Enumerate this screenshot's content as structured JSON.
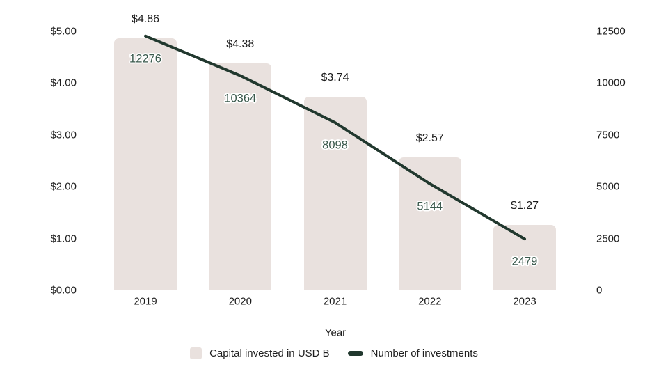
{
  "colors": {
    "bar_fill": "#e9e1de",
    "line": "#21382e",
    "point_label": "#3a594c",
    "text": "#1f1f1f"
  },
  "chart_data": {
    "type": "combo",
    "title": "",
    "xlabel": "Year",
    "categories": [
      "2019",
      "2020",
      "2021",
      "2022",
      "2023"
    ],
    "series": [
      {
        "name": "Capital invested in USD B",
        "type": "bar",
        "axis": "left",
        "values": [
          4.86,
          4.38,
          3.74,
          2.57,
          1.27
        ],
        "value_labels": [
          "$4.86",
          "$4.38",
          "$3.74",
          "$2.57",
          "$1.27"
        ]
      },
      {
        "name": "Number of investments",
        "type": "line",
        "axis": "right",
        "values": [
          12276,
          10364,
          8098,
          5144,
          2479
        ],
        "point_labels": [
          "12276",
          "10364",
          "8098",
          "5144",
          "2479"
        ]
      }
    ],
    "left_axis": {
      "ticks": [
        "$5.00",
        "$4.00",
        "$3.00",
        "$2.00",
        "$1.00",
        "$0.00"
      ],
      "min": 0,
      "max": 5
    },
    "right_axis": {
      "ticks": [
        "12500",
        "10000",
        "7500",
        "5000",
        "2500",
        "0"
      ],
      "min": 0,
      "max": 12500
    },
    "grid": false,
    "legend_position": "bottom"
  }
}
